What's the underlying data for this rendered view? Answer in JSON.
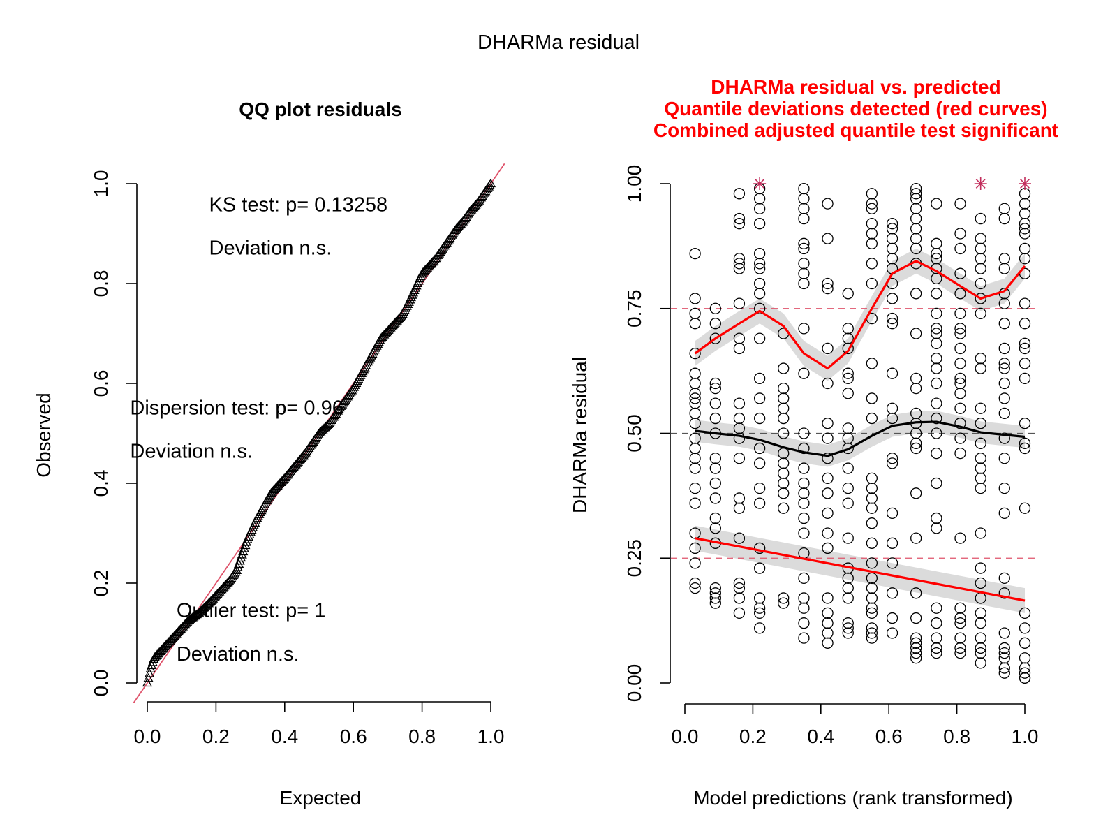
{
  "figure_title": "DHARMa residual",
  "colors": {
    "identity_line": "#DF536B",
    "quantile_curve": "#FF0000",
    "median_curve": "#000000",
    "band": "#D9D9D9",
    "reference_red": "#DF536B",
    "reference_gray": "#555555",
    "outlier": "#C22E5C"
  },
  "chart_data": [
    {
      "type": "scatter",
      "subtype": "qq",
      "title": "QQ plot residuals",
      "xlabel": "Expected",
      "ylabel": "Observed",
      "xlim": [
        0,
        1
      ],
      "ylim": [
        0,
        1
      ],
      "xticks": [
        "0.0",
        "0.2",
        "0.4",
        "0.6",
        "0.8",
        "1.0"
      ],
      "yticks": [
        "0.0",
        "0.2",
        "0.4",
        "0.6",
        "0.8",
        "1.0"
      ],
      "marker": "triangle-open",
      "reference_line": "y = x",
      "annotations": [
        {
          "text": "KS test: p= 0.13258",
          "x": 0.18,
          "y": 0.945
        },
        {
          "text": "Deviation  n.s.",
          "x": 0.18,
          "y": 0.858
        },
        {
          "text": "Dispersion test: p= 0.96",
          "x": -0.05,
          "y": 0.538
        },
        {
          "text": "Deviation  n.s.",
          "x": -0.05,
          "y": 0.451
        },
        {
          "text": "Outlier test: p= 1",
          "x": 0.085,
          "y": 0.132
        },
        {
          "text": "Deviation  n.s.",
          "x": 0.085,
          "y": 0.045
        }
      ],
      "qq_curve": {
        "x": [
          0.0,
          0.01,
          0.02,
          0.04,
          0.06,
          0.08,
          0.1,
          0.12,
          0.15,
          0.18,
          0.2,
          0.22,
          0.24,
          0.26,
          0.27,
          0.28,
          0.29,
          0.3,
          0.32,
          0.34,
          0.36,
          0.38,
          0.4,
          0.43,
          0.46,
          0.5,
          0.53,
          0.56,
          0.6,
          0.64,
          0.68,
          0.72,
          0.74,
          0.76,
          0.78,
          0.8,
          0.82,
          0.84,
          0.86,
          0.88,
          0.9,
          0.92,
          0.94,
          0.96,
          0.98,
          1.0
        ],
        "y": [
          0.0,
          0.03,
          0.05,
          0.065,
          0.08,
          0.095,
          0.11,
          0.125,
          0.14,
          0.16,
          0.175,
          0.19,
          0.205,
          0.225,
          0.245,
          0.265,
          0.285,
          0.3,
          0.33,
          0.355,
          0.38,
          0.395,
          0.41,
          0.435,
          0.46,
          0.5,
          0.52,
          0.55,
          0.59,
          0.64,
          0.69,
          0.72,
          0.735,
          0.76,
          0.79,
          0.82,
          0.835,
          0.85,
          0.87,
          0.89,
          0.91,
          0.925,
          0.945,
          0.96,
          0.98,
          1.0
        ]
      }
    },
    {
      "type": "scatter",
      "subtype": "residual-vs-predicted",
      "title_lines": [
        "DHARMa residual vs. predicted",
        "Quantile deviations detected (red curves)",
        "Combined adjusted quantile test significant"
      ],
      "xlabel": "Model predictions (rank transformed)",
      "ylabel": "DHARMa residual",
      "xlim": [
        0,
        1
      ],
      "ylim": [
        0,
        1
      ],
      "xticks": [
        "0.0",
        "0.2",
        "0.4",
        "0.6",
        "0.8",
        "1.0"
      ],
      "yticks": [
        "0.00",
        "0.25",
        "0.50",
        "0.75",
        "1.00"
      ],
      "reference_lines": [
        {
          "y": 0.25,
          "style": "dashed",
          "color": "red"
        },
        {
          "y": 0.5,
          "style": "dashed",
          "color": "gray"
        },
        {
          "y": 0.75,
          "style": "dashed",
          "color": "red"
        }
      ],
      "points": [
        {
          "x": 0.03,
          "y": [
            0.19,
            0.2,
            0.24,
            0.27,
            0.3,
            0.36,
            0.39,
            0.43,
            0.45,
            0.47,
            0.49,
            0.52,
            0.54,
            0.56,
            0.57,
            0.58,
            0.6,
            0.62,
            0.66,
            0.72,
            0.74,
            0.77,
            0.86
          ]
        },
        {
          "x": 0.09,
          "y": [
            0.16,
            0.17,
            0.18,
            0.19,
            0.28,
            0.31,
            0.33,
            0.37,
            0.4,
            0.43,
            0.45,
            0.5,
            0.53,
            0.56,
            0.59,
            0.6,
            0.69,
            0.72,
            0.75
          ]
        },
        {
          "x": 0.16,
          "y": [
            0.14,
            0.17,
            0.19,
            0.2,
            0.29,
            0.35,
            0.37,
            0.45,
            0.49,
            0.51,
            0.53,
            0.56,
            0.67,
            0.69,
            0.76,
            0.83,
            0.84,
            0.85,
            0.92,
            0.93,
            0.98
          ]
        },
        {
          "x": 0.22,
          "y": [
            0.11,
            0.14,
            0.15,
            0.17,
            0.23,
            0.27,
            0.36,
            0.39,
            0.44,
            0.47,
            0.53,
            0.57,
            0.61,
            0.69,
            0.75,
            0.78,
            0.8,
            0.83,
            0.84,
            0.86,
            0.92,
            0.95,
            0.97,
            0.99
          ]
        },
        {
          "x": 0.29,
          "y": [
            0.16,
            0.17,
            0.35,
            0.38,
            0.4,
            0.42,
            0.44,
            0.46,
            0.5,
            0.53,
            0.55,
            0.57,
            0.59,
            0.63,
            0.7
          ]
        },
        {
          "x": 0.35,
          "y": [
            0.09,
            0.12,
            0.15,
            0.17,
            0.21,
            0.26,
            0.3,
            0.33,
            0.36,
            0.38,
            0.4,
            0.43,
            0.47,
            0.5,
            0.62,
            0.71,
            0.8,
            0.82,
            0.84,
            0.87,
            0.88,
            0.93,
            0.95,
            0.97,
            0.99
          ]
        },
        {
          "x": 0.42,
          "y": [
            0.08,
            0.1,
            0.12,
            0.14,
            0.17,
            0.27,
            0.3,
            0.34,
            0.38,
            0.41,
            0.45,
            0.49,
            0.52,
            0.6,
            0.67,
            0.79,
            0.8,
            0.89,
            0.96
          ]
        },
        {
          "x": 0.48,
          "y": [
            0.1,
            0.11,
            0.12,
            0.17,
            0.19,
            0.21,
            0.23,
            0.29,
            0.36,
            0.39,
            0.43,
            0.47,
            0.49,
            0.51,
            0.58,
            0.61,
            0.62,
            0.67,
            0.69,
            0.71,
            0.78
          ]
        },
        {
          "x": 0.55,
          "y": [
            0.09,
            0.1,
            0.11,
            0.14,
            0.15,
            0.17,
            0.19,
            0.21,
            0.24,
            0.28,
            0.32,
            0.35,
            0.37,
            0.39,
            0.41,
            0.53,
            0.57,
            0.64,
            0.73,
            0.8,
            0.84,
            0.88,
            0.9,
            0.92,
            0.95,
            0.96,
            0.98
          ]
        },
        {
          "x": 0.61,
          "y": [
            0.1,
            0.13,
            0.18,
            0.24,
            0.28,
            0.34,
            0.44,
            0.45,
            0.53,
            0.55,
            0.62,
            0.72,
            0.73,
            0.77,
            0.8,
            0.83,
            0.85,
            0.87,
            0.89,
            0.91,
            0.92
          ]
        },
        {
          "x": 0.68,
          "y": [
            0.05,
            0.06,
            0.07,
            0.08,
            0.09,
            0.13,
            0.18,
            0.29,
            0.38,
            0.47,
            0.48,
            0.5,
            0.52,
            0.54,
            0.59,
            0.61,
            0.7,
            0.78,
            0.84,
            0.87,
            0.89,
            0.91,
            0.93,
            0.95,
            0.97,
            0.98,
            0.99
          ]
        },
        {
          "x": 0.74,
          "y": [
            0.06,
            0.07,
            0.09,
            0.12,
            0.15,
            0.31,
            0.33,
            0.4,
            0.46,
            0.5,
            0.53,
            0.56,
            0.6,
            0.63,
            0.65,
            0.68,
            0.7,
            0.71,
            0.74,
            0.78,
            0.81,
            0.83,
            0.85,
            0.86,
            0.88,
            0.96
          ]
        },
        {
          "x": 0.81,
          "y": [
            0.06,
            0.07,
            0.09,
            0.12,
            0.13,
            0.15,
            0.29,
            0.46,
            0.49,
            0.52,
            0.55,
            0.58,
            0.6,
            0.61,
            0.64,
            0.67,
            0.7,
            0.71,
            0.74,
            0.78,
            0.82,
            0.87,
            0.9,
            0.96
          ]
        },
        {
          "x": 0.87,
          "y": [
            0.04,
            0.06,
            0.07,
            0.09,
            0.12,
            0.14,
            0.17,
            0.2,
            0.23,
            0.3,
            0.39,
            0.41,
            0.43,
            0.45,
            0.48,
            0.52,
            0.55,
            0.63,
            0.65,
            0.74,
            0.77,
            0.8,
            0.83,
            0.85,
            0.87,
            0.89,
            0.93
          ]
        },
        {
          "x": 0.94,
          "y": [
            0.02,
            0.03,
            0.05,
            0.06,
            0.07,
            0.1,
            0.18,
            0.21,
            0.34,
            0.39,
            0.45,
            0.49,
            0.54,
            0.57,
            0.6,
            0.63,
            0.64,
            0.67,
            0.72,
            0.76,
            0.78,
            0.83,
            0.85,
            0.93,
            0.95
          ]
        },
        {
          "x": 1.0,
          "y": [
            0.01,
            0.01,
            0.02,
            0.03,
            0.05,
            0.08,
            0.11,
            0.14,
            0.35,
            0.47,
            0.48,
            0.52,
            0.61,
            0.64,
            0.67,
            0.68,
            0.72,
            0.76,
            0.82,
            0.85,
            0.87,
            0.9,
            0.91,
            0.92,
            0.94,
            0.96,
            0.98
          ]
        }
      ],
      "outliers": [
        {
          "x": 0.22,
          "y": 1.0
        },
        {
          "x": 0.87,
          "y": 1.0
        },
        {
          "x": 1.0,
          "y": 1.0
        }
      ],
      "curves": [
        {
          "quantile": 0.75,
          "color": "red",
          "x": [
            0.03,
            0.09,
            0.16,
            0.22,
            0.29,
            0.35,
            0.42,
            0.48,
            0.55,
            0.61,
            0.68,
            0.74,
            0.81,
            0.87,
            0.94,
            1.0
          ],
          "y": [
            0.66,
            0.69,
            0.72,
            0.745,
            0.715,
            0.66,
            0.63,
            0.665,
            0.75,
            0.82,
            0.845,
            0.825,
            0.795,
            0.77,
            0.785,
            0.835
          ],
          "band": 0.025
        },
        {
          "quantile": 0.5,
          "color": "black",
          "x": [
            0.03,
            0.09,
            0.16,
            0.22,
            0.29,
            0.35,
            0.42,
            0.48,
            0.55,
            0.61,
            0.68,
            0.74,
            0.81,
            0.87,
            0.94,
            1.0
          ],
          "y": [
            0.505,
            0.5,
            0.495,
            0.487,
            0.472,
            0.462,
            0.455,
            0.468,
            0.495,
            0.515,
            0.522,
            0.523,
            0.513,
            0.502,
            0.497,
            0.493
          ],
          "band": 0.022
        },
        {
          "quantile": 0.25,
          "color": "red",
          "x": [
            0.03,
            1.0
          ],
          "y": [
            0.29,
            0.165
          ],
          "band": 0.025
        }
      ]
    }
  ]
}
